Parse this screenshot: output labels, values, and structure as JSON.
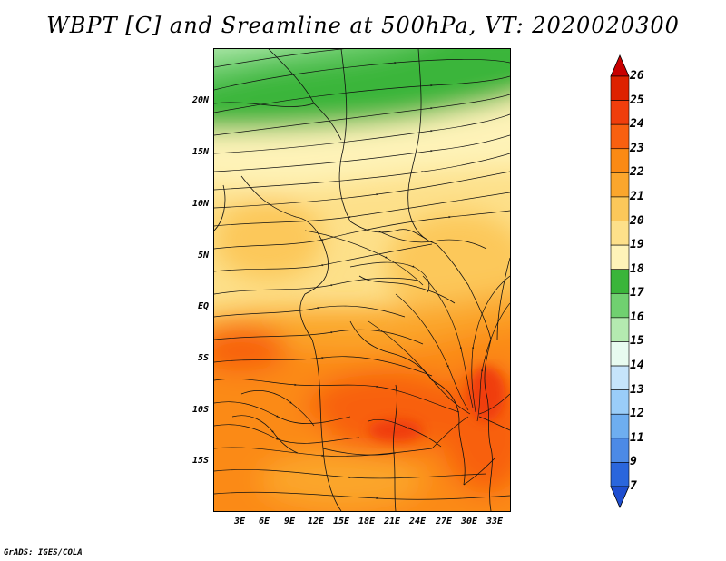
{
  "title": "WBPT [C] and Sreamline at 500hPa, VT: 2020020300",
  "footer": "GrADS: IGES/COLA",
  "map": {
    "lat_labels": [
      "20N",
      "15N",
      "10N",
      "5N",
      "EQ",
      "5S",
      "10S",
      "15S"
    ],
    "lon_labels": [
      "3E",
      "6E",
      "9E",
      "12E",
      "15E",
      "18E",
      "21E",
      "24E",
      "27E",
      "30E",
      "33E"
    ],
    "lon_range": [
      0,
      36
    ],
    "lat_range": [
      -20,
      24
    ],
    "field": "wet-bulb potential temperature",
    "overlay": "streamlines"
  },
  "colorbar": {
    "labels": [
      "26",
      "25",
      "24",
      "23",
      "22",
      "21",
      "20",
      "19",
      "18",
      "17",
      "16",
      "15",
      "14",
      "13",
      "12",
      "11",
      "9",
      "7"
    ],
    "colors": [
      "#c80000",
      "#dd2200",
      "#f03e0c",
      "#f86010",
      "#fb8a14",
      "#fba62c",
      "#fcc85a",
      "#fde08a",
      "#fef3b8",
      "#3ab53a",
      "#70d070",
      "#b4eab0",
      "#e8fbf0",
      "#c6e4fb",
      "#9acdf8",
      "#6eaef0",
      "#4c8ae6",
      "#2a66dc",
      "#1e4ed0"
    ]
  }
}
